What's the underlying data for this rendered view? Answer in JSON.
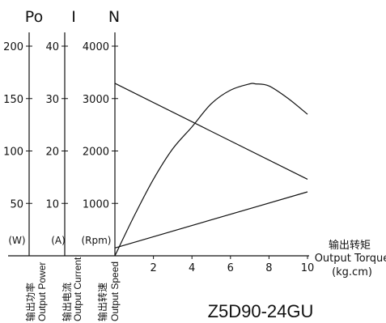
{
  "chart_data": {
    "type": "line",
    "x_axis": {
      "label_cn": "输出转矩",
      "label_en": "Output Torque",
      "unit": "(kg.cm)",
      "range": [
        0,
        10
      ],
      "ticks": [
        "2",
        "4",
        "6",
        "8",
        "10"
      ]
    },
    "y_axes": [
      {
        "id": "power",
        "letter": "Po",
        "unit": "(W)",
        "label_cn": "输出功率",
        "label_en": "Output Power",
        "range": [
          0,
          200
        ],
        "ticks": [
          "50",
          "100",
          "150",
          "200"
        ]
      },
      {
        "id": "current",
        "letter": "I",
        "unit": "(A)",
        "label_cn": "输出电流",
        "label_en": "Output Current",
        "range": [
          0,
          40
        ],
        "ticks": [
          "10",
          "20",
          "30",
          "40"
        ]
      },
      {
        "id": "speed",
        "letter": "N",
        "unit": "(Rpm)",
        "label_cn": "输出转速",
        "label_en": "Output Speed",
        "range": [
          0,
          4000
        ],
        "ticks": [
          "1000",
          "2000",
          "3000",
          "4000"
        ]
      }
    ],
    "series": [
      {
        "axis": "speed",
        "x": [
          0,
          10
        ],
        "y": [
          3290,
          1460
        ]
      },
      {
        "axis": "current",
        "x": [
          0,
          10
        ],
        "y": [
          1.5,
          12.2
        ]
      },
      {
        "axis": "power",
        "x": [
          0,
          1,
          2,
          3,
          4,
          5,
          6,
          7,
          7.3,
          8,
          9,
          10
        ],
        "y": [
          0,
          38,
          73,
          102,
          123,
          145,
          158,
          164,
          164,
          162,
          150,
          135
        ]
      }
    ],
    "grid": false,
    "legend": "none"
  },
  "model_name": "Z5D90-24GU"
}
